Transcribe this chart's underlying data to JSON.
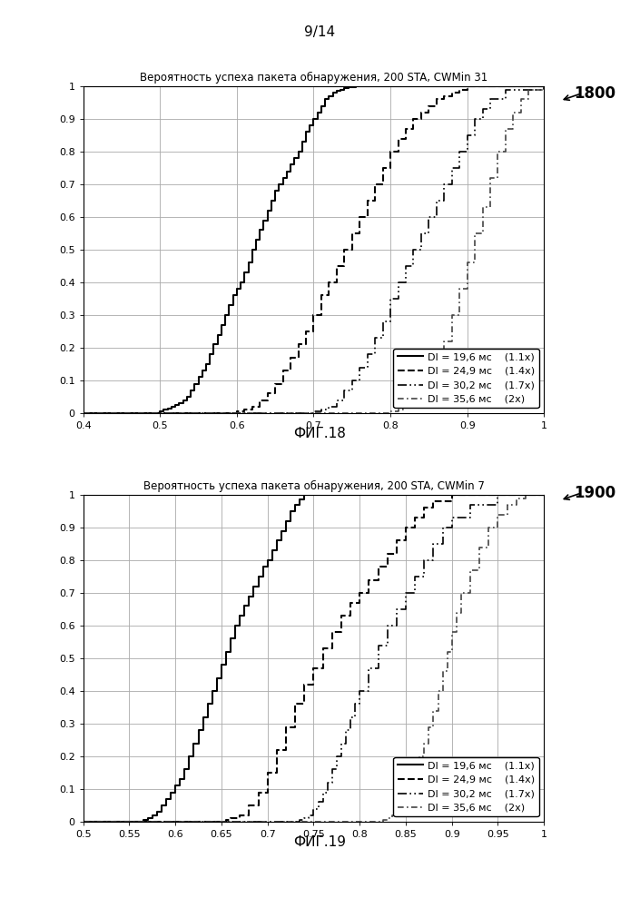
{
  "page_label": "9/14",
  "fig1": {
    "title": "Вероятность успеха пакета обнаружения, 200 STA, CWMin 31",
    "label": "ФИГ.18",
    "ref_label": "1800",
    "xlim": [
      0.4,
      1.0
    ],
    "ylim": [
      0.0,
      1.0
    ],
    "xticks": [
      0.4,
      0.5,
      0.6,
      0.7,
      0.8,
      0.9,
      1.0
    ],
    "yticks": [
      0.0,
      0.1,
      0.2,
      0.3,
      0.4,
      0.5,
      0.6,
      0.7,
      0.8,
      0.9,
      1.0
    ],
    "series": [
      {
        "label": "DI = 19,6 мс",
        "extra_label": "(1.1x)",
        "x": [
          0.4,
          0.49,
          0.5,
          0.505,
          0.51,
          0.515,
          0.52,
          0.525,
          0.53,
          0.535,
          0.54,
          0.545,
          0.55,
          0.555,
          0.56,
          0.565,
          0.57,
          0.575,
          0.58,
          0.585,
          0.59,
          0.595,
          0.6,
          0.605,
          0.61,
          0.615,
          0.62,
          0.625,
          0.63,
          0.635,
          0.64,
          0.645,
          0.65,
          0.655,
          0.66,
          0.665,
          0.67,
          0.675,
          0.68,
          0.685,
          0.69,
          0.695,
          0.7,
          0.705,
          0.71,
          0.715,
          0.72,
          0.725,
          0.73,
          0.735,
          0.74,
          0.745,
          0.75,
          0.755,
          0.76,
          0.765,
          0.77,
          0.8,
          1.0
        ],
        "y": [
          0.0,
          0.0,
          0.005,
          0.01,
          0.015,
          0.02,
          0.025,
          0.03,
          0.04,
          0.05,
          0.07,
          0.09,
          0.11,
          0.13,
          0.15,
          0.18,
          0.21,
          0.24,
          0.27,
          0.3,
          0.33,
          0.36,
          0.38,
          0.4,
          0.43,
          0.46,
          0.5,
          0.53,
          0.56,
          0.59,
          0.62,
          0.65,
          0.68,
          0.7,
          0.72,
          0.74,
          0.76,
          0.78,
          0.8,
          0.83,
          0.86,
          0.88,
          0.9,
          0.92,
          0.94,
          0.96,
          0.97,
          0.98,
          0.985,
          0.99,
          0.995,
          0.997,
          0.998,
          0.999,
          1.0,
          1.0,
          1.0,
          1.0,
          1.0
        ]
      },
      {
        "label": "DI = 24,9 мс",
        "extra_label": "(1.4x)",
        "x": [
          0.4,
          0.59,
          0.6,
          0.61,
          0.62,
          0.63,
          0.64,
          0.65,
          0.66,
          0.67,
          0.68,
          0.69,
          0.7,
          0.71,
          0.72,
          0.73,
          0.74,
          0.75,
          0.76,
          0.77,
          0.78,
          0.79,
          0.8,
          0.81,
          0.82,
          0.83,
          0.84,
          0.85,
          0.86,
          0.87,
          0.88,
          0.89,
          0.9,
          0.95,
          1.0
        ],
        "y": [
          0.0,
          0.0,
          0.005,
          0.01,
          0.02,
          0.04,
          0.06,
          0.09,
          0.13,
          0.17,
          0.21,
          0.25,
          0.3,
          0.36,
          0.4,
          0.45,
          0.5,
          0.55,
          0.6,
          0.65,
          0.7,
          0.75,
          0.8,
          0.84,
          0.87,
          0.9,
          0.92,
          0.94,
          0.96,
          0.97,
          0.98,
          0.99,
          1.0,
          1.0,
          1.0
        ]
      },
      {
        "label": "DI = 30,2 мс",
        "extra_label": "(1.7x)",
        "x": [
          0.4,
          0.69,
          0.7,
          0.71,
          0.72,
          0.73,
          0.74,
          0.75,
          0.76,
          0.77,
          0.78,
          0.79,
          0.8,
          0.81,
          0.82,
          0.83,
          0.84,
          0.85,
          0.86,
          0.87,
          0.88,
          0.89,
          0.9,
          0.91,
          0.92,
          0.93,
          0.95,
          1.0
        ],
        "y": [
          0.0,
          0.0,
          0.005,
          0.01,
          0.02,
          0.04,
          0.07,
          0.1,
          0.14,
          0.18,
          0.23,
          0.28,
          0.35,
          0.4,
          0.45,
          0.5,
          0.55,
          0.6,
          0.65,
          0.7,
          0.75,
          0.8,
          0.85,
          0.9,
          0.93,
          0.96,
          0.99,
          1.0
        ]
      },
      {
        "label": "DI = 35,6 мс",
        "extra_label": "(2x)",
        "x": [
          0.4,
          0.79,
          0.8,
          0.81,
          0.82,
          0.83,
          0.84,
          0.85,
          0.86,
          0.87,
          0.88,
          0.89,
          0.9,
          0.91,
          0.92,
          0.93,
          0.94,
          0.95,
          0.96,
          0.97,
          0.98,
          1.0
        ],
        "y": [
          0.0,
          0.0,
          0.005,
          0.01,
          0.02,
          0.04,
          0.07,
          0.1,
          0.15,
          0.22,
          0.3,
          0.38,
          0.46,
          0.55,
          0.63,
          0.72,
          0.8,
          0.87,
          0.92,
          0.96,
          0.99,
          1.0
        ]
      }
    ]
  },
  "fig2": {
    "title": "Вероятность успеха пакета обнаружения, 200 STA, CWMin 7",
    "label": "ФИГ.19",
    "ref_label": "1900",
    "xlim": [
      0.5,
      1.0
    ],
    "ylim": [
      0.0,
      1.0
    ],
    "xticks": [
      0.5,
      0.55,
      0.6,
      0.65,
      0.7,
      0.75,
      0.8,
      0.85,
      0.9,
      0.95,
      1.0
    ],
    "yticks": [
      0.0,
      0.1,
      0.2,
      0.3,
      0.4,
      0.5,
      0.6,
      0.7,
      0.8,
      0.9,
      1.0
    ],
    "series": [
      {
        "label": "DI = 19,6 мс",
        "extra_label": "(1.1x)",
        "x": [
          0.5,
          0.56,
          0.565,
          0.57,
          0.575,
          0.58,
          0.585,
          0.59,
          0.595,
          0.6,
          0.605,
          0.61,
          0.615,
          0.62,
          0.625,
          0.63,
          0.635,
          0.64,
          0.645,
          0.65,
          0.655,
          0.66,
          0.665,
          0.67,
          0.675,
          0.68,
          0.685,
          0.69,
          0.695,
          0.7,
          0.705,
          0.71,
          0.715,
          0.72,
          0.725,
          0.73,
          0.735,
          0.74,
          0.75,
          0.8,
          1.0
        ],
        "y": [
          0.0,
          0.0,
          0.005,
          0.01,
          0.02,
          0.03,
          0.05,
          0.07,
          0.09,
          0.11,
          0.13,
          0.16,
          0.2,
          0.24,
          0.28,
          0.32,
          0.36,
          0.4,
          0.44,
          0.48,
          0.52,
          0.56,
          0.6,
          0.63,
          0.66,
          0.69,
          0.72,
          0.75,
          0.78,
          0.8,
          0.83,
          0.86,
          0.89,
          0.92,
          0.95,
          0.97,
          0.985,
          1.0,
          1.0,
          1.0,
          1.0
        ]
      },
      {
        "label": "DI = 24,9 мс",
        "extra_label": "(1.4x)",
        "x": [
          0.5,
          0.65,
          0.655,
          0.66,
          0.67,
          0.68,
          0.69,
          0.7,
          0.71,
          0.72,
          0.73,
          0.74,
          0.75,
          0.76,
          0.77,
          0.78,
          0.79,
          0.8,
          0.81,
          0.82,
          0.83,
          0.84,
          0.85,
          0.86,
          0.87,
          0.88,
          0.9,
          1.0
        ],
        "y": [
          0.0,
          0.0,
          0.005,
          0.01,
          0.02,
          0.05,
          0.09,
          0.15,
          0.22,
          0.29,
          0.36,
          0.42,
          0.47,
          0.53,
          0.58,
          0.63,
          0.67,
          0.7,
          0.74,
          0.78,
          0.82,
          0.86,
          0.9,
          0.93,
          0.96,
          0.98,
          1.0,
          1.0
        ]
      },
      {
        "label": "DI = 30,2 мс",
        "extra_label": "(1.7x)",
        "x": [
          0.5,
          0.73,
          0.735,
          0.74,
          0.745,
          0.75,
          0.755,
          0.76,
          0.765,
          0.77,
          0.775,
          0.78,
          0.785,
          0.79,
          0.795,
          0.8,
          0.81,
          0.82,
          0.83,
          0.84,
          0.85,
          0.86,
          0.87,
          0.88,
          0.89,
          0.9,
          0.92,
          0.95,
          1.0
        ],
        "y": [
          0.0,
          0.0,
          0.005,
          0.01,
          0.02,
          0.04,
          0.06,
          0.09,
          0.12,
          0.16,
          0.2,
          0.24,
          0.28,
          0.32,
          0.36,
          0.4,
          0.47,
          0.54,
          0.6,
          0.65,
          0.7,
          0.75,
          0.8,
          0.85,
          0.9,
          0.93,
          0.97,
          1.0,
          1.0
        ]
      },
      {
        "label": "DI = 35,6 мс",
        "extra_label": "(2x)",
        "x": [
          0.5,
          0.82,
          0.825,
          0.83,
          0.835,
          0.84,
          0.845,
          0.85,
          0.855,
          0.86,
          0.865,
          0.87,
          0.875,
          0.88,
          0.885,
          0.89,
          0.895,
          0.9,
          0.905,
          0.91,
          0.92,
          0.93,
          0.94,
          0.95,
          0.96,
          0.97,
          0.98,
          1.0
        ],
        "y": [
          0.0,
          0.0,
          0.005,
          0.01,
          0.02,
          0.04,
          0.06,
          0.09,
          0.12,
          0.16,
          0.2,
          0.24,
          0.29,
          0.34,
          0.4,
          0.46,
          0.52,
          0.58,
          0.64,
          0.7,
          0.77,
          0.84,
          0.9,
          0.94,
          0.97,
          0.99,
          1.0,
          1.0
        ]
      }
    ]
  },
  "background_color": "#ffffff",
  "grid_color": "#aaaaaa",
  "font_size_title": 8.5,
  "font_size_tick": 8,
  "font_size_legend": 8,
  "font_size_label": 11,
  "font_size_page": 11
}
